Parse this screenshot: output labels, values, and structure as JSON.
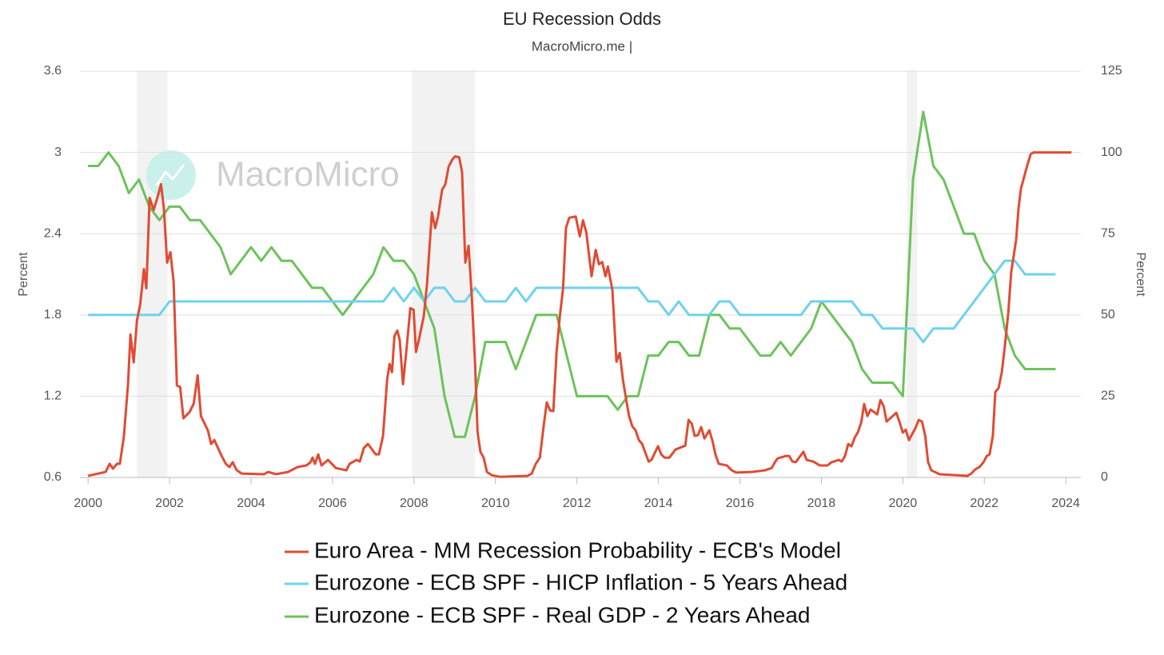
{
  "chart_data": {
    "type": "line",
    "title": "EU Recession Odds",
    "subtitle": "MacroMicro.me |",
    "watermark": "MacroMicro",
    "y_label": "Percent",
    "y2_label": "Percent",
    "xlim": [
      1999.8,
      2024.37
    ],
    "xticks": [
      2000,
      2002,
      2004,
      2006,
      2008,
      2010,
      2012,
      2014,
      2016,
      2018,
      2020,
      2022,
      2024
    ],
    "ylim": [
      0.6,
      3.6
    ],
    "yticks": [
      0.6,
      1.2,
      1.8,
      2.4,
      3,
      3.6
    ],
    "y2lim": [
      0,
      125
    ],
    "y2ticks": [
      0,
      25,
      50,
      75,
      100,
      125
    ],
    "grid": true,
    "legend": "bottom",
    "recession_color": "#f2f2f2",
    "recessions": [
      [
        2001.2,
        2001.95
      ],
      [
        2007.95,
        2009.5
      ],
      [
        2020.1,
        2020.35
      ]
    ],
    "series": [
      {
        "name": "Euro Area - MM Recession Probability - ECB's Model",
        "color": "#e04b33",
        "axis": "y2",
        "x": [
          2000.0,
          2000.43,
          2000.53,
          2000.61,
          2000.71,
          2000.78,
          2000.88,
          2000.98,
          2001.04,
          2001.12,
          2001.2,
          2001.28,
          2001.37,
          2001.43,
          2001.51,
          2001.61,
          2001.71,
          2001.79,
          2001.86,
          2001.94,
          2002.02,
          2002.1,
          2002.18,
          2002.26,
          2002.34,
          2002.49,
          2002.59,
          2002.69,
          2002.77,
          2002.94,
          2003.02,
          2003.1,
          2003.26,
          2003.38,
          2003.47,
          2003.55,
          2003.65,
          2003.77,
          2004.32,
          2004.42,
          2004.61,
          2004.91,
          2005.14,
          2005.36,
          2005.46,
          2005.51,
          2005.57,
          2005.65,
          2005.73,
          2005.89,
          2006.08,
          2006.34,
          2006.42,
          2006.59,
          2006.67,
          2006.77,
          2006.87,
          2007.06,
          2007.14,
          2007.24,
          2007.34,
          2007.4,
          2007.46,
          2007.52,
          2007.59,
          2007.65,
          2007.73,
          2007.81,
          2007.91,
          2007.99,
          2008.05,
          2008.14,
          2008.24,
          2008.32,
          2008.44,
          2008.52,
          2008.59,
          2008.69,
          2008.77,
          2008.85,
          2008.95,
          2009.01,
          2009.11,
          2009.18,
          2009.26,
          2009.34,
          2009.42,
          2009.5,
          2009.56,
          2009.63,
          2009.71,
          2009.79,
          2009.91,
          2010.11,
          2010.79,
          2010.89,
          2010.99,
          2011.09,
          2011.19,
          2011.26,
          2011.34,
          2011.42,
          2011.5,
          2011.58,
          2011.66,
          2011.73,
          2011.81,
          2011.97,
          2012.07,
          2012.15,
          2012.23,
          2012.36,
          2012.46,
          2012.54,
          2012.62,
          2012.7,
          2012.76,
          2012.87,
          2012.97,
          2013.05,
          2013.13,
          2013.21,
          2013.28,
          2013.36,
          2013.44,
          2013.52,
          2013.6,
          2013.68,
          2013.76,
          2013.83,
          2013.99,
          2014.07,
          2014.15,
          2014.27,
          2014.42,
          2014.66,
          2014.74,
          2014.82,
          2014.89,
          2014.97,
          2015.05,
          2015.13,
          2015.25,
          2015.33,
          2015.4,
          2015.48,
          2015.68,
          2015.8,
          2015.91,
          2016.29,
          2016.62,
          2016.78,
          2016.86,
          2016.93,
          2017.13,
          2017.21,
          2017.29,
          2017.37,
          2017.56,
          2017.64,
          2017.8,
          2017.96,
          2018.15,
          2018.25,
          2018.43,
          2018.5,
          2018.58,
          2018.66,
          2018.74,
          2018.82,
          2018.9,
          2018.98,
          2019.05,
          2019.13,
          2019.21,
          2019.37,
          2019.45,
          2019.53,
          2019.6,
          2019.84,
          2019.92,
          2020.0,
          2020.07,
          2020.15,
          2020.31,
          2020.39,
          2020.47,
          2020.55,
          2020.62,
          2020.7,
          2020.9,
          2021.59,
          2021.68,
          2021.78,
          2021.88,
          2021.98,
          2022.06,
          2022.13,
          2022.21,
          2022.27,
          2022.35,
          2022.43,
          2022.51,
          2022.59,
          2022.66,
          2022.72,
          2022.78,
          2022.84,
          2022.9,
          2022.98,
          2023.06,
          2023.14,
          2023.21,
          2023.35,
          2024.14
        ],
        "values": [
          0.5,
          1.7,
          4.2,
          2.7,
          4.2,
          4.2,
          12.8,
          28.7,
          44,
          35.4,
          48.4,
          53.3,
          64.1,
          58.2,
          86,
          82.3,
          86.5,
          90.2,
          82.8,
          66.1,
          69.3,
          60.2,
          28.3,
          27.8,
          18.2,
          20.1,
          22.6,
          31.4,
          18.9,
          14.5,
          10.3,
          11.5,
          7.1,
          4.2,
          3.2,
          4.7,
          2.2,
          1.2,
          1,
          1.7,
          1,
          1.7,
          3.2,
          3.7,
          4.7,
          6.1,
          4.2,
          7.1,
          3.7,
          5.4,
          2.9,
          2.2,
          4.2,
          5.4,
          4.9,
          9.1,
          10.3,
          7.1,
          7.1,
          12.8,
          30,
          34.9,
          32.4,
          43.5,
          45.2,
          42.3,
          28.7,
          38.6,
          52.1,
          51.6,
          38.6,
          43.5,
          49.6,
          59.5,
          81.6,
          76.7,
          80.3,
          88.5,
          90.2,
          95.6,
          98,
          98.8,
          98.5,
          93.9,
          66.1,
          71.3,
          55.3,
          34.9,
          14,
          7.9,
          6.1,
          1.7,
          0.7,
          0.2,
          0.5,
          1.2,
          4.2,
          6.1,
          16.5,
          23.1,
          20.6,
          20.4,
          38.6,
          49.6,
          58.2,
          76.7,
          79.9,
          80.3,
          74.2,
          79.1,
          75.4,
          61.9,
          70,
          65.6,
          66.3,
          61.9,
          64.9,
          57.7,
          35.6,
          38.3,
          30,
          23.8,
          18.9,
          15.7,
          14.5,
          11.5,
          10.3,
          7.6,
          4.9,
          5.4,
          9.6,
          7.1,
          6.1,
          6.1,
          8.6,
          9.8,
          17.7,
          16.5,
          12.8,
          13,
          15.5,
          12,
          14.5,
          11.1,
          7.1,
          4.2,
          3.7,
          2.2,
          1.5,
          1.7,
          2.2,
          2.9,
          4.7,
          5.9,
          6.6,
          6.6,
          4.9,
          4.7,
          7.9,
          5.4,
          4.9,
          3.7,
          3.7,
          4.7,
          5.4,
          4.9,
          6.6,
          10.3,
          9.6,
          12.3,
          14,
          17,
          22.6,
          18.9,
          20.9,
          19.4,
          23.8,
          21.9,
          17.2,
          19.9,
          17,
          13.8,
          14.7,
          11.5,
          15.2,
          17.7,
          17.2,
          12.8,
          4.7,
          2.2,
          1,
          0.5,
          1.2,
          2.5,
          3.2,
          4.7,
          6.6,
          7.1,
          12.8,
          26.3,
          27.5,
          32.4,
          41,
          50.9,
          63.1,
          68.1,
          73,
          82.8,
          88.9,
          92.6,
          96.3,
          99.5,
          100,
          100,
          100
        ]
      },
      {
        "name": "Eurozone - ECB SPF - HICP Inflation - 5 Years Ahead",
        "color": "#6dd3ee",
        "axis": "y",
        "x": [
          2000,
          2001.75,
          2002,
          2007.25,
          2007.5,
          2007.75,
          2008,
          2008.25,
          2008.5,
          2008.75,
          2009,
          2009.25,
          2009.5,
          2009.75,
          2010.25,
          2010.5,
          2010.75,
          2011,
          2013.5,
          2013.75,
          2014,
          2014.25,
          2014.5,
          2014.75,
          2015.25,
          2015.5,
          2015.75,
          2016,
          2017.5,
          2017.75,
          2018.75,
          2019,
          2019.25,
          2019.5,
          2020.25,
          2020.5,
          2020.75,
          2021.25,
          2022.5,
          2022.75,
          2023,
          2023.75
        ],
        "values": [
          1.8,
          1.8,
          1.9,
          1.9,
          2.0,
          1.9,
          2.0,
          1.9,
          2.0,
          2.0,
          1.9,
          1.9,
          2.0,
          1.9,
          1.9,
          2.0,
          1.9,
          2.0,
          2.0,
          1.9,
          1.9,
          1.8,
          1.9,
          1.8,
          1.8,
          1.9,
          1.9,
          1.8,
          1.8,
          1.9,
          1.9,
          1.8,
          1.8,
          1.7,
          1.7,
          1.6,
          1.7,
          1.7,
          2.2,
          2.2,
          2.1,
          2.1
        ]
      },
      {
        "name": "Eurozone - ECB SPF - Real GDP - 2 Years Ahead",
        "color": "#6cc35b",
        "axis": "y",
        "x": [
          2000,
          2000.25,
          2000.5,
          2000.75,
          2001,
          2001.25,
          2001.5,
          2001.75,
          2002,
          2002.25,
          2002.5,
          2002.75,
          2003.25,
          2003.5,
          2004,
          2004.25,
          2004.5,
          2004.75,
          2005,
          2005.5,
          2005.75,
          2006.25,
          2007,
          2007.25,
          2007.5,
          2007.75,
          2008,
          2008.25,
          2008.5,
          2008.75,
          2009,
          2009.25,
          2009.5,
          2009.75,
          2010.25,
          2010.5,
          2011,
          2011.5,
          2012,
          2012.75,
          2013,
          2013.25,
          2013.5,
          2013.75,
          2014,
          2014.25,
          2014.5,
          2014.75,
          2015,
          2015.25,
          2015.5,
          2015.75,
          2016,
          2016.5,
          2016.75,
          2017,
          2017.25,
          2017.75,
          2018,
          2018.75,
          2019,
          2019.25,
          2019.75,
          2020,
          2020.25,
          2020.5,
          2020.75,
          2021,
          2021.5,
          2021.75,
          2022,
          2022.25,
          2022.5,
          2022.75,
          2023,
          2023.75
        ],
        "values": [
          2.9,
          2.9,
          3.0,
          2.9,
          2.7,
          2.8,
          2.6,
          2.5,
          2.6,
          2.6,
          2.5,
          2.5,
          2.3,
          2.1,
          2.3,
          2.2,
          2.3,
          2.2,
          2.2,
          2.0,
          2.0,
          1.8,
          2.1,
          2.3,
          2.2,
          2.2,
          2.1,
          1.9,
          1.7,
          1.2,
          0.9,
          0.9,
          1.2,
          1.6,
          1.6,
          1.4,
          1.8,
          1.8,
          1.2,
          1.2,
          1.1,
          1.2,
          1.2,
          1.5,
          1.5,
          1.6,
          1.6,
          1.5,
          1.5,
          1.8,
          1.8,
          1.7,
          1.7,
          1.5,
          1.5,
          1.6,
          1.5,
          1.7,
          1.9,
          1.6,
          1.4,
          1.3,
          1.3,
          1.2,
          2.8,
          3.3,
          2.9,
          2.8,
          2.4,
          2.4,
          2.2,
          2.1,
          1.7,
          1.5,
          1.4,
          1.4
        ]
      }
    ]
  }
}
